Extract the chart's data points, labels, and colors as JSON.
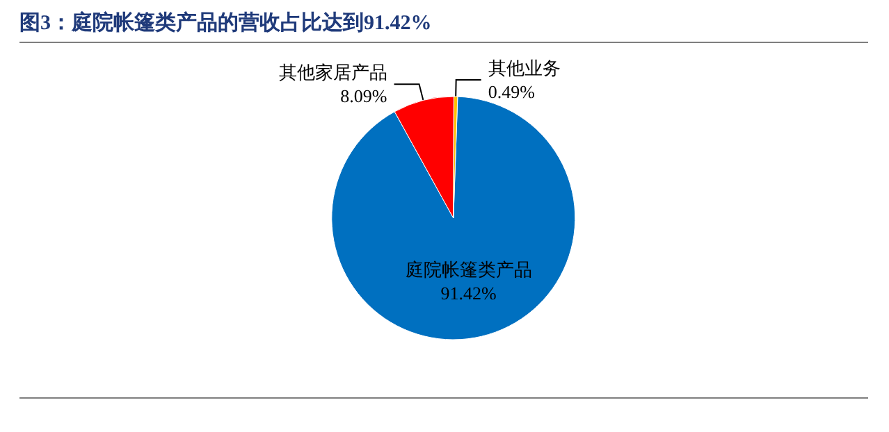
{
  "chart_data": {
    "type": "pie",
    "title": "图3：庭院帐篷类产品的营收占比达到91.42%",
    "categories": [
      "庭院帐篷类产品",
      "其他家居产品",
      "其他业务"
    ],
    "values": [
      91.42,
      8.09,
      0.49
    ],
    "colors": [
      "#0070c0",
      "#ff0000",
      "#ffc000"
    ],
    "value_labels": [
      "91.42%",
      "8.09%",
      "0.49%"
    ],
    "legend": false
  }
}
